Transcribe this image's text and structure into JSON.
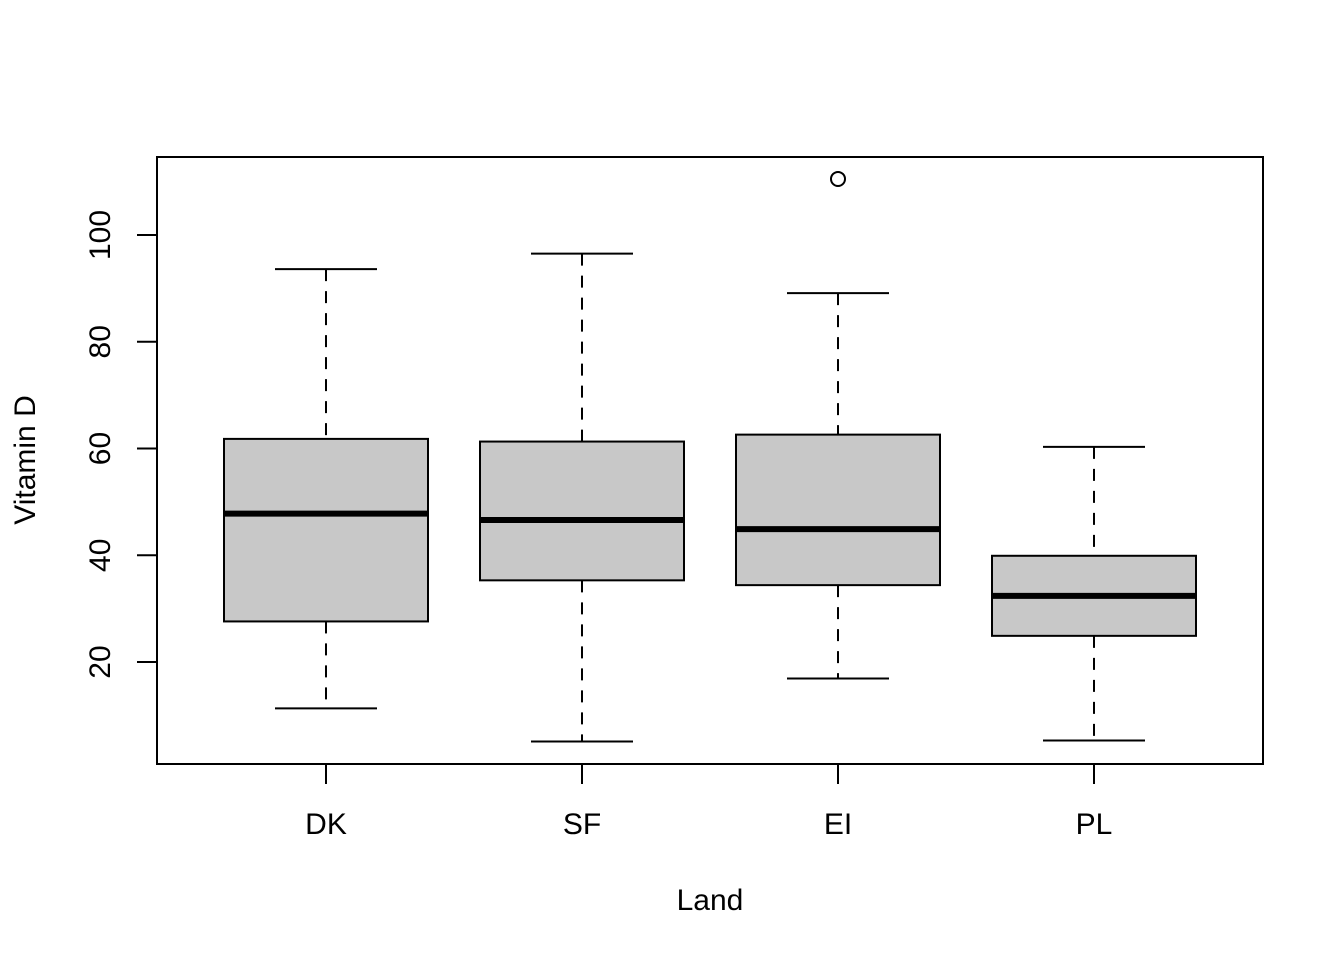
{
  "chart_data": {
    "type": "box",
    "xlabel": "Land",
    "ylabel": "Vitamin D",
    "ylim": [
      1,
      115
    ],
    "yticks": [
      20,
      40,
      60,
      80,
      100
    ],
    "categories": [
      "DK",
      "SF",
      "EI",
      "PL"
    ],
    "boxes": [
      {
        "category": "DK",
        "whisker_low": 11.3,
        "q1": 27.6,
        "median": 47.8,
        "q3": 61.8,
        "whisker_high": 93.6,
        "outliers": []
      },
      {
        "category": "SF",
        "whisker_low": 5.1,
        "q1": 35.3,
        "median": 46.6,
        "q3": 61.3,
        "whisker_high": 96.5,
        "outliers": []
      },
      {
        "category": "EI",
        "whisker_low": 16.9,
        "q1": 34.4,
        "median": 44.9,
        "q3": 62.6,
        "whisker_high": 89.1,
        "outliers": [
          110.5
        ]
      },
      {
        "category": "PL",
        "whisker_low": 5.3,
        "q1": 24.9,
        "median": 32.4,
        "q3": 39.9,
        "whisker_high": 60.3,
        "outliers": []
      }
    ],
    "colors": {
      "box_fill": "#c8c8c8",
      "stroke": "#000000",
      "background": "#ffffff"
    }
  }
}
